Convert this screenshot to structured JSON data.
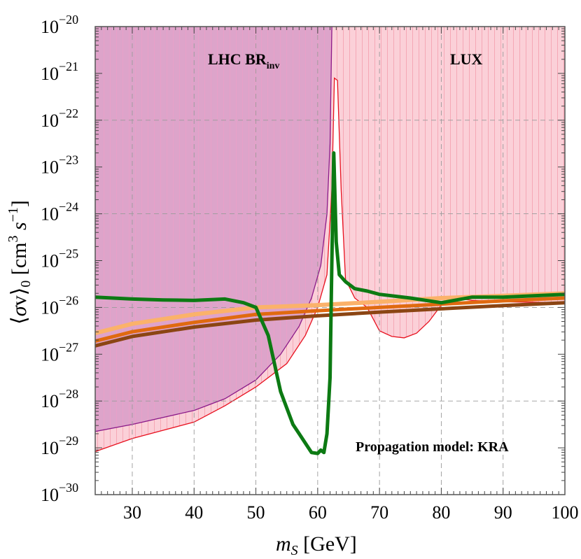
{
  "chart_data": {
    "type": "line",
    "xlabel": "m_S [GeV]",
    "ylabel": "⟨σv⟩₀ [cm³s⁻¹]",
    "xlim": [
      24,
      100
    ],
    "ylim_log10": [
      -30,
      -20
    ],
    "yscale": "log",
    "grid": true,
    "x_ticks": [
      30,
      40,
      50,
      60,
      70,
      80,
      90,
      100
    ],
    "y_ticks_exp": [
      -30,
      -29,
      -28,
      -27,
      -26,
      -25,
      -24,
      -23,
      -22,
      -21,
      -20
    ],
    "annotation": "Propagation model: KRA",
    "regions": [
      {
        "name": "LHC BR",
        "subscript": "inv",
        "color": "#8b1a89",
        "fill": "#d89cc8",
        "boundary": [
          [
            24,
            -28.65
          ],
          [
            30,
            -28.5
          ],
          [
            40,
            -28.2
          ],
          [
            45,
            -27.95
          ],
          [
            50,
            -27.55
          ],
          [
            54,
            -27.0
          ],
          [
            57,
            -26.4
          ],
          [
            59,
            -25.8
          ],
          [
            60.5,
            -25.1
          ],
          [
            61.5,
            -24.0
          ],
          [
            62,
            -22.5
          ],
          [
            62.3,
            -20.0
          ]
        ]
      },
      {
        "name": "LUX",
        "color": "#e8101e",
        "fill": "#fbd0d8",
        "boundary": [
          [
            24,
            -29.08
          ],
          [
            30,
            -28.8
          ],
          [
            40,
            -28.45
          ],
          [
            45,
            -28.1
          ],
          [
            50,
            -27.7
          ],
          [
            55,
            -27.2
          ],
          [
            58,
            -26.6
          ],
          [
            60,
            -26.0
          ],
          [
            61.5,
            -25.3
          ],
          [
            62.3,
            -23.5
          ],
          [
            62.7,
            -21.1
          ],
          [
            63.2,
            -21.15
          ],
          [
            63.8,
            -23.5
          ],
          [
            64.5,
            -25.4
          ],
          [
            66,
            -25.8
          ],
          [
            68,
            -26.0
          ],
          [
            70,
            -26.5
          ],
          [
            72,
            -26.62
          ],
          [
            74,
            -26.65
          ],
          [
            76,
            -26.55
          ],
          [
            78,
            -26.3
          ],
          [
            80,
            -25.95
          ],
          [
            82,
            -25.8
          ],
          [
            85,
            -25.85
          ],
          [
            90,
            -25.88
          ],
          [
            100,
            -25.9
          ]
        ]
      }
    ],
    "series": [
      {
        "color": "#0c7a13",
        "values": [
          [
            24,
            -25.78
          ],
          [
            30,
            -25.82
          ],
          [
            35,
            -25.84
          ],
          [
            40,
            -25.85
          ],
          [
            45,
            -25.82
          ],
          [
            48,
            -25.9
          ],
          [
            50,
            -26.0
          ],
          [
            52,
            -26.6
          ],
          [
            54,
            -27.8
          ],
          [
            55,
            -28.15
          ],
          [
            56,
            -28.5
          ],
          [
            57,
            -28.7
          ],
          [
            58,
            -28.9
          ],
          [
            59,
            -29.1
          ],
          [
            60,
            -29.12
          ],
          [
            60.5,
            -29.05
          ],
          [
            61,
            -29.1
          ],
          [
            61.5,
            -28.7
          ],
          [
            62,
            -27.5
          ],
          [
            62.3,
            -25.0
          ],
          [
            62.6,
            -22.7
          ],
          [
            63,
            -24.6
          ],
          [
            63.5,
            -25.3
          ],
          [
            64.5,
            -25.45
          ],
          [
            66,
            -25.6
          ],
          [
            68,
            -25.65
          ],
          [
            70,
            -25.72
          ],
          [
            75,
            -25.8
          ],
          [
            80,
            -25.9
          ],
          [
            85,
            -25.78
          ],
          [
            90,
            -25.78
          ],
          [
            95,
            -25.75
          ],
          [
            100,
            -25.72
          ]
        ]
      },
      {
        "color": "#fbb26a",
        "values": [
          [
            24,
            -26.55
          ],
          [
            30,
            -26.35
          ],
          [
            40,
            -26.15
          ],
          [
            50,
            -26.0
          ],
          [
            60,
            -25.95
          ],
          [
            70,
            -25.88
          ],
          [
            80,
            -25.8
          ],
          [
            90,
            -25.75
          ],
          [
            100,
            -25.7
          ]
        ]
      },
      {
        "color": "#e06a10",
        "values": [
          [
            24,
            -26.72
          ],
          [
            30,
            -26.52
          ],
          [
            40,
            -26.32
          ],
          [
            50,
            -26.15
          ],
          [
            60,
            -26.07
          ],
          [
            70,
            -26.0
          ],
          [
            80,
            -25.93
          ],
          [
            90,
            -25.86
          ],
          [
            100,
            -25.8
          ]
        ]
      },
      {
        "color": "#8b4513",
        "values": [
          [
            24,
            -26.82
          ],
          [
            30,
            -26.62
          ],
          [
            40,
            -26.42
          ],
          [
            50,
            -26.27
          ],
          [
            60,
            -26.18
          ],
          [
            70,
            -26.1
          ],
          [
            80,
            -26.03
          ],
          [
            90,
            -25.96
          ],
          [
            100,
            -25.9
          ]
        ]
      }
    ]
  }
}
